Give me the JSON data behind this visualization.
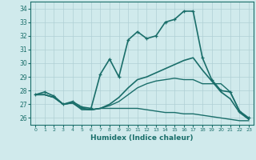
{
  "xlabel": "Humidex (Indice chaleur)",
  "bg_color": "#d0eaec",
  "grid_color": "#b0cfd4",
  "line_color": "#1a6e6a",
  "xlim": [
    -0.5,
    23.5
  ],
  "ylim": [
    25.5,
    34.5
  ],
  "xticks": [
    0,
    1,
    2,
    3,
    4,
    5,
    6,
    7,
    8,
    9,
    10,
    11,
    12,
    13,
    14,
    15,
    16,
    17,
    18,
    19,
    20,
    21,
    22,
    23
  ],
  "yticks": [
    26,
    27,
    28,
    29,
    30,
    31,
    32,
    33,
    34
  ],
  "series": [
    {
      "x": [
        0,
        1,
        2,
        3,
        4,
        5,
        6,
        7,
        8,
        9,
        10,
        11,
        12,
        13,
        14,
        15,
        16,
        17,
        18,
        19,
        20,
        21,
        22,
        23
      ],
      "y": [
        27.7,
        27.9,
        27.6,
        27.0,
        27.2,
        26.8,
        26.7,
        29.2,
        30.3,
        29.0,
        31.7,
        32.3,
        31.8,
        32.0,
        33.0,
        33.2,
        33.8,
        33.8,
        30.4,
        28.8,
        28.0,
        27.9,
        26.5,
        26.0
      ],
      "marker": true,
      "lw": 1.2
    },
    {
      "x": [
        0,
        1,
        2,
        3,
        4,
        5,
        6,
        7,
        8,
        9,
        10,
        11,
        12,
        13,
        14,
        15,
        16,
        17,
        18,
        19,
        20,
        21,
        22,
        23
      ],
      "y": [
        27.7,
        27.7,
        27.5,
        27.0,
        27.1,
        26.7,
        26.6,
        26.7,
        27.0,
        27.5,
        28.2,
        28.8,
        29.0,
        29.3,
        29.6,
        29.9,
        30.2,
        30.4,
        29.5,
        28.7,
        27.9,
        27.4,
        26.4,
        25.9
      ],
      "marker": false,
      "lw": 1.2
    },
    {
      "x": [
        0,
        1,
        2,
        3,
        4,
        5,
        6,
        7,
        8,
        9,
        10,
        11,
        12,
        13,
        14,
        15,
        16,
        17,
        18,
        19,
        20,
        21,
        22,
        23
      ],
      "y": [
        27.7,
        27.7,
        27.5,
        27.0,
        27.1,
        26.6,
        26.6,
        26.7,
        26.7,
        26.7,
        26.7,
        26.7,
        26.6,
        26.5,
        26.4,
        26.4,
        26.3,
        26.3,
        26.2,
        26.1,
        26.0,
        25.9,
        25.8,
        25.8
      ],
      "marker": false,
      "lw": 1.0
    },
    {
      "x": [
        0,
        1,
        2,
        3,
        4,
        5,
        6,
        7,
        8,
        9,
        10,
        11,
        12,
        13,
        14,
        15,
        16,
        17,
        18,
        19,
        20,
        21,
        22,
        23
      ],
      "y": [
        27.7,
        27.7,
        27.5,
        27.0,
        27.1,
        26.7,
        26.6,
        26.7,
        26.9,
        27.2,
        27.7,
        28.2,
        28.5,
        28.7,
        28.8,
        28.9,
        28.8,
        28.8,
        28.5,
        28.5,
        28.5,
        27.9,
        26.5,
        25.9
      ],
      "marker": false,
      "lw": 1.0
    }
  ]
}
